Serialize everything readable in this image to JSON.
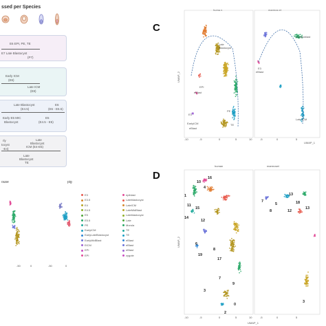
{
  "header": {
    "title": "ssed per Species"
  },
  "panel_a": {
    "row1": {
      "line1": "E6  EPI, PE, TE",
      "line2": "E7   Late Blastocyst",
      "line3": "(P7)"
    },
    "row2": {
      "line1": "Early ICM",
      "line2": "(E6)",
      "line3": "Late ICM",
      "line4": "(E8)"
    },
    "row3": {
      "line1": "Late Blastocyst",
      "line2": "(E4.5)",
      "line3": "E6",
      "line4": "(E6 - E6.5)",
      "line5": "Early E5 MIC",
      "line6": "Blastocyst",
      "line7": "E5",
      "line8": "(E4.5 - E5)"
    },
    "row4": {
      "line1": "rly",
      "line2": "tocyst",
      "line3": "-E4)",
      "line4": "Late",
      "line5": "Blastocyst",
      "line6": "ICM (E4-E5)",
      "line7": "Late",
      "line8": "Blastocyst",
      "line9": "TE"
    }
  },
  "panel_b": {
    "title_left": "ouse",
    "title_right": "pig",
    "x_ticks_left": [
      "-50",
      "0"
    ],
    "x_ticks_right": [
      "-50",
      "0"
    ],
    "legend_col1": [
      "E3",
      "E3.5",
      "E4",
      "E4.5",
      "E5",
      "E5.5",
      "PE",
      "EarlyICM",
      "EarlyLateBlastocyst",
      "EarlyMidBlast",
      "EiCM",
      "EPI",
      "EPI"
    ],
    "legend_col2": [
      "epiblast",
      "Lateblastocyst",
      "LateICM",
      "LateMidBlast",
      "Lateblastocyst",
      "Late",
      "Morula",
      "TE",
      "TE",
      "eBlast",
      "eBlast",
      "eBlast",
      "zygote"
    ],
    "legend_colors_col1": [
      "#e75a4e",
      "#d4882f",
      "#b7a526",
      "#8fb02a",
      "#4ea63a",
      "#2aa968",
      "#1fa99b",
      "#1c9fc4",
      "#2e86d6",
      "#6b73d9",
      "#9d63d3",
      "#c94fc0",
      "#e24c98"
    ],
    "legend_colors_col2": [
      "#e24c98",
      "#e75a4e",
      "#d4882f",
      "#b7a526",
      "#8fb02a",
      "#4ea63a",
      "#2aa968",
      "#1fa99b",
      "#1c9fc4",
      "#2e86d6",
      "#6b73d9",
      "#9d63d3",
      "#c94fc0"
    ]
  },
  "panel_c": {
    "letter": "C",
    "title_left": "huma n",
    "title_right": "marmos et",
    "ylabel": "UMAP_2",
    "xlabel": "UMAP_1",
    "x_ticks": [
      "-10",
      "-5",
      "0",
      "5",
      "10",
      "-5",
      "0",
      "5"
    ],
    "annotations": [
      "Late",
      "Blastocyst",
      "EPI",
      "eBlast",
      "E3",
      "EarlyICM",
      "eBlast",
      "PE",
      "TE",
      "Late ICM",
      "Cortytoblast",
      "E3",
      "eBlast"
    ]
  },
  "panel_d": {
    "letter": "D",
    "title_left": "human",
    "title_right": "marmoset",
    "ylabel": "UMAP_2",
    "xlabel": "UMAP_1",
    "x_ticks": [
      "-10",
      "-5",
      "0",
      "5",
      "10",
      "-5",
      "0",
      "5"
    ],
    "cluster_labels": [
      "16",
      "10",
      "4",
      "1",
      "11",
      "14",
      "15",
      "12",
      "6",
      "8",
      "19",
      "17",
      "7",
      "9",
      "0",
      "3",
      "2",
      "13",
      "18",
      "5",
      "12",
      "13",
      "7",
      "8",
      "3"
    ]
  }
}
